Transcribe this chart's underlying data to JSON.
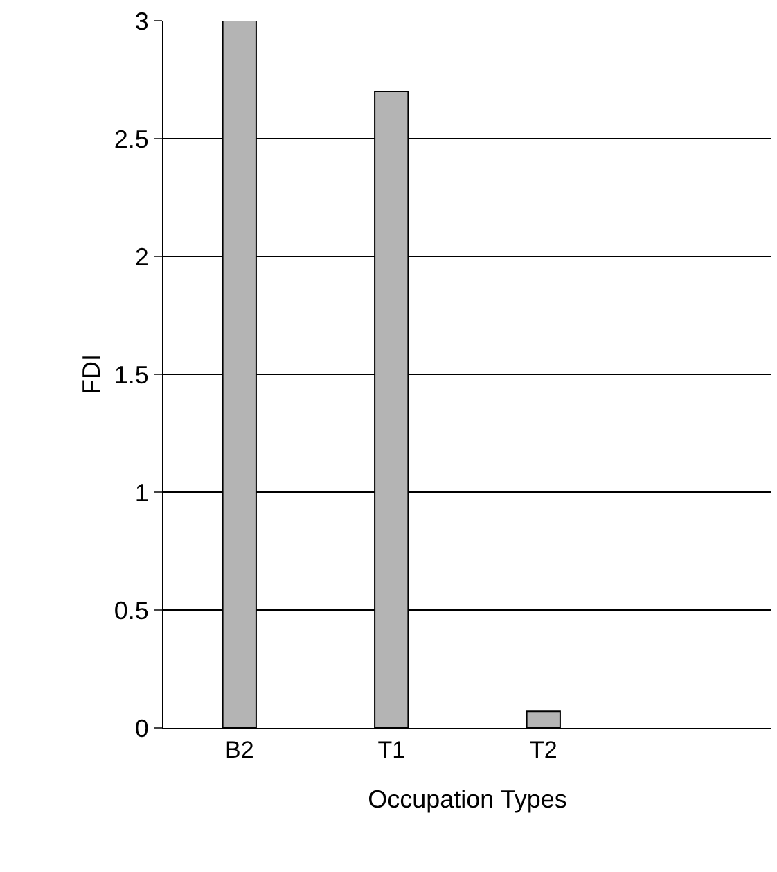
{
  "chart_data": {
    "type": "bar",
    "xlabel": "Occupation Types",
    "ylabel": "FDI",
    "categories": [
      "B2",
      "T1",
      "T2",
      null
    ],
    "values": [
      3,
      2.7,
      0.07,
      null
    ],
    "color": "#b4b4b4",
    "ylim": [
      0,
      3
    ],
    "yticks": [
      0,
      0.5,
      1,
      1.5,
      2,
      2.5,
      3
    ],
    "grid": "y",
    "legend": false
  }
}
